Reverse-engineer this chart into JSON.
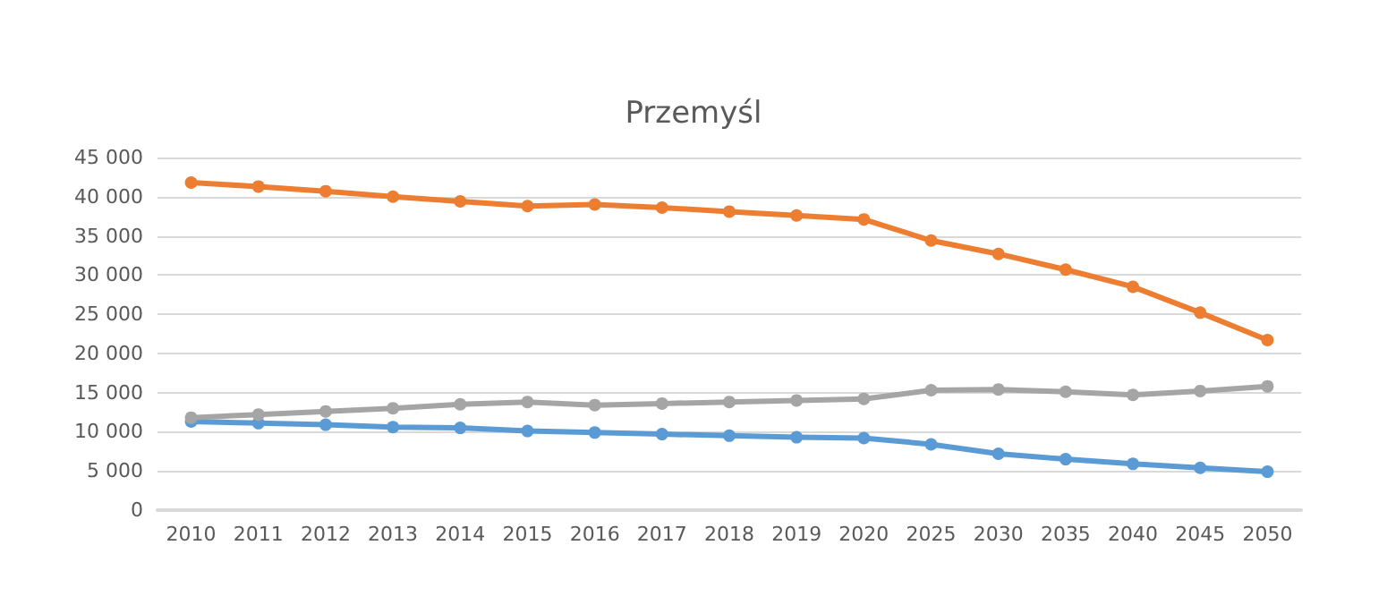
{
  "chart_data": {
    "type": "line",
    "title": "Przemyśl",
    "categories": [
      "2010",
      "2011",
      "2012",
      "2013",
      "2014",
      "2015",
      "2016",
      "2017",
      "2018",
      "2019",
      "2020",
      "2025",
      "2030",
      "2035",
      "2040",
      "2045",
      "2050"
    ],
    "series": [
      {
        "color": "#5b9bd5",
        "values": [
          11300,
          11100,
          10900,
          10600,
          10500,
          10100,
          9900,
          9700,
          9500,
          9300,
          9200,
          8400,
          7200,
          6500,
          5900,
          5400,
          4900
        ]
      },
      {
        "color": "#ed7d31",
        "values": [
          41800,
          41300,
          40700,
          40000,
          39400,
          38800,
          39000,
          38600,
          38100,
          37600,
          37100,
          34400,
          32700,
          30700,
          28500,
          25200,
          21700
        ]
      },
      {
        "color": "#a5a5a5",
        "values": [
          11800,
          12200,
          12600,
          13000,
          13500,
          13800,
          13400,
          13600,
          13800,
          14000,
          14200,
          15300,
          15400,
          15100,
          14700,
          15200,
          15800
        ]
      }
    ],
    "ylim": [
      0,
      45000
    ],
    "yticks": [
      {
        "value": 0,
        "label": "0"
      },
      {
        "value": 5000,
        "label": "5 000"
      },
      {
        "value": 10000,
        "label": "10 000"
      },
      {
        "value": 15000,
        "label": "15 000"
      },
      {
        "value": 20000,
        "label": "20 000"
      },
      {
        "value": 25000,
        "label": "25 000"
      },
      {
        "value": 30000,
        "label": "30 000"
      },
      {
        "value": 35000,
        "label": "35 000"
      },
      {
        "value": 40000,
        "label": "40 000"
      },
      {
        "value": 45000,
        "label": "45 000"
      }
    ],
    "grid": "y",
    "marker": "circle",
    "line_style": "solid"
  }
}
